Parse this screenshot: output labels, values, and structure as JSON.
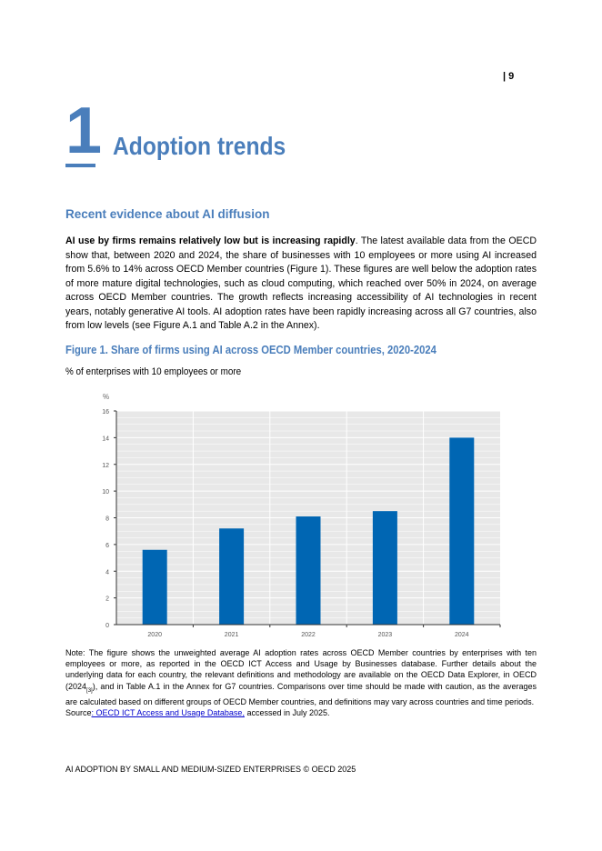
{
  "page_number": "| 9",
  "chapter": {
    "number": "1",
    "title": "Adoption trends"
  },
  "section_heading": "Recent evidence about AI diffusion",
  "paragraph": {
    "lead": "AI use by firms remains relatively low but is increasing rapidly",
    "body": ". The latest available data from the OECD show that, between 2020 and 2024, the share of businesses with 10 employees or more using AI increased from 5.6% to 14% across OECD Member countries (Figure 1). These figures are well below the adoption rates of more mature digital technologies, such as cloud computing, which reached over 50% in 2024, on average across OECD Member countries. The growth reflects increasing accessibility of AI technologies in recent years, notably generative AI tools. AI adoption rates have been rapidly increasing across all G7 countries, also from low levels (see Figure A.1 and Table A.2 in the Annex)."
  },
  "figure": {
    "title": "Figure 1. Share of firms using AI across OECD Member countries, 2020-2024",
    "subtitle": "% of enterprises with 10 employees or more"
  },
  "chart_data": {
    "type": "bar",
    "categories": [
      "2020",
      "2021",
      "2022",
      "2023",
      "2024"
    ],
    "values": [
      5.6,
      7.2,
      8.1,
      8.5,
      14.0
    ],
    "ylabel": "%",
    "ylim": [
      0,
      16
    ],
    "yticks": [
      0,
      2,
      4,
      6,
      8,
      10,
      12,
      14,
      16
    ],
    "grid": true,
    "bar_color": "#0066b3",
    "plot_background": "#e8e8e8"
  },
  "note": {
    "text1": "Note: The figure shows the unweighted average AI adoption rates across OECD Member countries by enterprises with ten employees or more, as reported in the OECD ICT Access and Usage by Businesses database. Further details about the underlying data for each country, the relevant definitions and methodology are available on the OECD Data Explorer, in OECD (2024",
    "ref": "[3]",
    "text2": "), and in Table A.1 in the Annex for G7 countries. Comparisons over time should be made with caution, as the averages are calculated based on different groups of OECD Member countries, and definitions may vary across countries and time periods.",
    "source_label": "Source",
    "source_link": ": OECD ICT Access and Usage Database,",
    "source_rest": " accessed in July 2025."
  },
  "footer": "AI ADOPTION BY SMALL AND MEDIUM-SIZED ENTERPRISES © OECD 2025"
}
